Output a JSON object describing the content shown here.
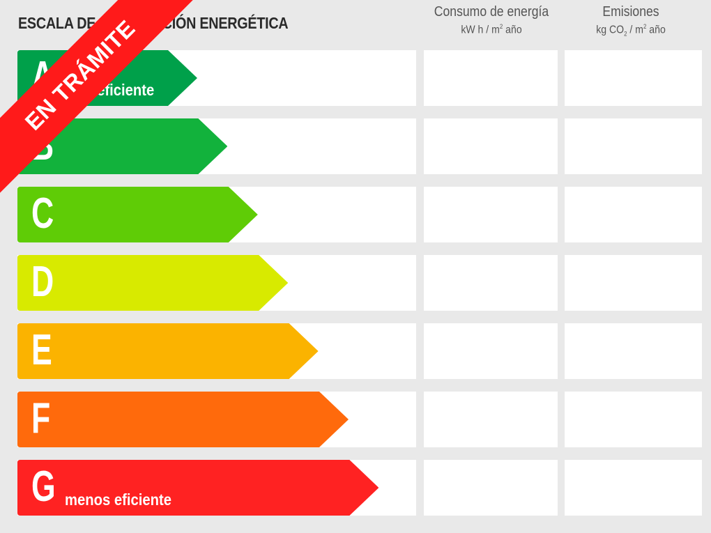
{
  "title": "ESCALA DE CALIFICACIÓN ENERGÉTICA",
  "columns": {
    "consumo": {
      "label": "Consumo de energía",
      "unit_prefix": "kW h / m",
      "unit_sup": "2",
      "unit_suffix": " año"
    },
    "emisiones": {
      "label": "Emisiones",
      "unit_prefix": "kg CO",
      "unit_sub": "2",
      "unit_mid": " / m",
      "unit_sup": "2",
      "unit_suffix": " año"
    }
  },
  "ribbon": {
    "text": "EN TRÁMITE",
    "color": "#ff1a1a"
  },
  "ratings": [
    {
      "letter": "A",
      "label": "más eficiente",
      "color": "#00a04a"
    },
    {
      "letter": "B",
      "label": "",
      "color": "#12b23c"
    },
    {
      "letter": "C",
      "label": "",
      "color": "#5fcc06"
    },
    {
      "letter": "D",
      "label": "",
      "color": "#d8ea00"
    },
    {
      "letter": "E",
      "label": "",
      "color": "#fbb300"
    },
    {
      "letter": "F",
      "label": "",
      "color": "#ff6a0c"
    },
    {
      "letter": "G",
      "label": "menos eficiente",
      "color": "#ff2222"
    }
  ]
}
